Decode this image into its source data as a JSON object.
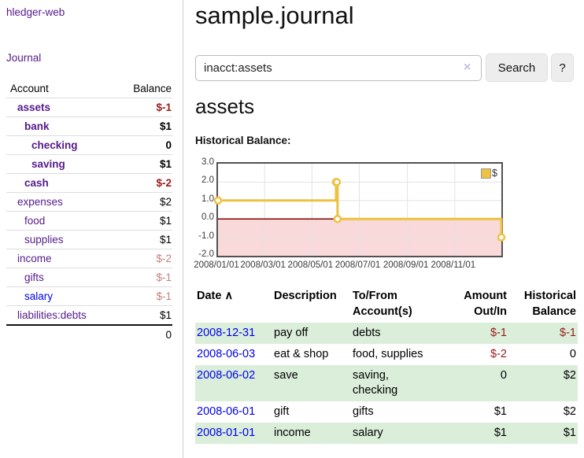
{
  "app": {
    "brand": "hledger-web"
  },
  "nav": {
    "journal_label": "Journal"
  },
  "sidebar": {
    "header": {
      "account": "Account",
      "balance": "Balance"
    },
    "rows": [
      {
        "name": "assets",
        "balance": "$-1",
        "indent": 1,
        "in_query": true,
        "balance_class": "neg-strong",
        "link_class": "visited"
      },
      {
        "name": "bank",
        "balance": "$1",
        "indent": 2,
        "in_query": true,
        "balance_class": "",
        "link_class": "visited"
      },
      {
        "name": "checking",
        "balance": "0",
        "indent": 3,
        "in_query": true,
        "balance_class": "",
        "link_class": "visited"
      },
      {
        "name": "saving",
        "balance": "$1",
        "indent": 3,
        "in_query": true,
        "balance_class": "",
        "link_class": "visited"
      },
      {
        "name": "cash",
        "balance": "$-2",
        "indent": 2,
        "in_query": true,
        "balance_class": "neg-strong",
        "link_class": "visited"
      },
      {
        "name": "expenses",
        "balance": "$2",
        "indent": 1,
        "in_query": false,
        "balance_class": "",
        "link_class": "visited"
      },
      {
        "name": "food",
        "balance": "$1",
        "indent": 2,
        "in_query": false,
        "balance_class": "",
        "link_class": "visited"
      },
      {
        "name": "supplies",
        "balance": "$1",
        "indent": 2,
        "in_query": false,
        "balance_class": "",
        "link_class": "visited"
      },
      {
        "name": "income",
        "balance": "$-2",
        "indent": 1,
        "in_query": false,
        "balance_class": "neg-soft",
        "link_class": "visited"
      },
      {
        "name": "gifts",
        "balance": "$-1",
        "indent": 2,
        "in_query": false,
        "balance_class": "neg-soft",
        "link_class": "visited"
      },
      {
        "name": "salary",
        "balance": "$-1",
        "indent": 2,
        "in_query": false,
        "balance_class": "neg-soft",
        "link_class": "unvisited"
      },
      {
        "name": "liabilities:debts",
        "balance": "$1",
        "indent": 1,
        "in_query": false,
        "balance_class": "",
        "link_class": "visited"
      }
    ],
    "total": "0"
  },
  "main": {
    "title": "sample.journal",
    "search": {
      "value": "inacct:assets",
      "clear_icon": "×",
      "button_label": "Search",
      "help_label": "?"
    },
    "account_heading": "assets",
    "chart_label": "Historical Balance:"
  },
  "chart_data": {
    "type": "line",
    "step": true,
    "title": "Historical Balance:",
    "xlim": [
      "2008-01-01",
      "2008-12-31"
    ],
    "ylim": [
      -2,
      3
    ],
    "yticks": [
      3.0,
      2.0,
      1.0,
      0.0,
      -1.0,
      -2.0
    ],
    "xticks": [
      {
        "date": "2008-01-01",
        "label": "2008/01/01"
      },
      {
        "date": "2008-03-01",
        "label": "2008/03/01"
      },
      {
        "date": "2008-05-01",
        "label": "2008/05/01"
      },
      {
        "date": "2008-07-01",
        "label": "2008/07/01"
      },
      {
        "date": "2008-09-01",
        "label": "2008/09/01"
      },
      {
        "date": "2008-11-01",
        "label": "2008/11/01"
      }
    ],
    "series": [
      {
        "name": "$",
        "color": "#edc240",
        "points": [
          [
            "2008-01-01",
            1
          ],
          [
            "2008-06-01",
            2
          ],
          [
            "2008-06-02",
            2
          ],
          [
            "2008-06-03",
            0
          ],
          [
            "2008-12-31",
            -1
          ]
        ]
      }
    ],
    "legend_position": "top-right",
    "grid": true,
    "grid_color": "#e3e3e3",
    "frame_color": "#515151",
    "zero_line_color": "#7f0000",
    "negative_region_color": "#f9d9d9"
  },
  "table": {
    "sort_arrow": "∧",
    "headers": [
      {
        "lines": [
          "Date"
        ],
        "sorted": true,
        "align": "left"
      },
      {
        "lines": [
          "Description"
        ],
        "align": "left"
      },
      {
        "lines": [
          "To/From",
          "Account(s)"
        ],
        "align": "left"
      },
      {
        "lines": [
          "Amount",
          "Out/In"
        ],
        "align": "right"
      },
      {
        "lines": [
          "Historical",
          "Balance"
        ],
        "align": "right"
      }
    ],
    "rows": [
      {
        "date": "2008-12-31",
        "description": "pay off",
        "accounts_lines": [
          "debts"
        ],
        "amount": "$-1",
        "amount_negative": true,
        "balance": "$-1",
        "balance_negative": true
      },
      {
        "date": "2008-06-03",
        "description": "eat & shop",
        "accounts_lines": [
          "food, supplies"
        ],
        "amount": "$-2",
        "amount_negative": true,
        "balance": "0",
        "balance_negative": false
      },
      {
        "date": "2008-06-02",
        "description": "save",
        "accounts_lines": [
          "saving,",
          "checking"
        ],
        "amount": "0",
        "amount_negative": false,
        "balance": "$2",
        "balance_negative": false
      },
      {
        "date": "2008-06-01",
        "description": "gift",
        "accounts_lines": [
          "gifts"
        ],
        "amount": "$1",
        "amount_negative": false,
        "balance": "$2",
        "balance_negative": false
      },
      {
        "date": "2008-01-01",
        "description": "income",
        "accounts_lines": [
          "salary"
        ],
        "amount": "$1",
        "amount_negative": false,
        "balance": "$1",
        "balance_negative": false
      }
    ]
  },
  "colors": {
    "link_visited_purple": "#551a8b",
    "link_unvisited_blue": "#0000ee",
    "negative_strong": "#991b1b",
    "negative_soft": "#c47e7e",
    "row_stripe_green": "#daeeda",
    "series_yellow": "#edc240",
    "chart_negative_fill": "#f9d9d9",
    "chart_zero_line": "#7f0000",
    "button_bg": "#ededed"
  }
}
